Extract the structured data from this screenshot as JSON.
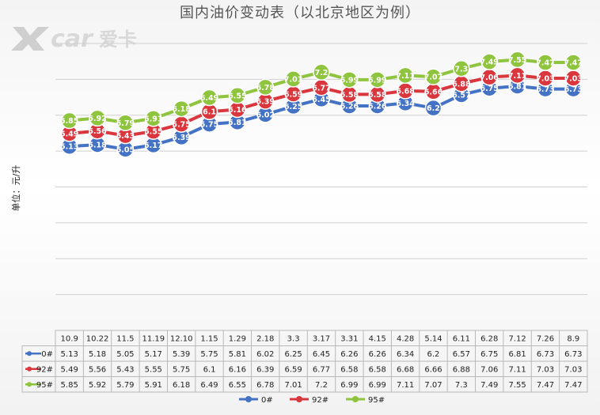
{
  "logo": {
    "mark": "X",
    "brand": "car",
    "cn": "爱卡"
  },
  "chart_data": {
    "type": "line",
    "title": "国内油价变动表（以北京地区为例）",
    "ylabel": "单位：元/升",
    "xlabel": "",
    "categories": [
      "10.9",
      "10.22",
      "11.5",
      "11.19",
      "12.10",
      "1.15",
      "1.29",
      "2.18",
      "3.3",
      "3.17",
      "3.31",
      "4.15",
      "4.28",
      "5.14",
      "6.11",
      "6.28",
      "7.12",
      "7.26",
      "8.9"
    ],
    "series": [
      {
        "name": "0#",
        "color": "#4472c4",
        "values": [
          5.13,
          5.18,
          5.05,
          5.17,
          5.39,
          5.75,
          5.81,
          6.02,
          6.25,
          6.45,
          6.26,
          6.26,
          6.34,
          6.2,
          6.57,
          6.75,
          6.81,
          6.73,
          6.73
        ]
      },
      {
        "name": "92#",
        "color": "#d9363e",
        "values": [
          5.49,
          5.56,
          5.43,
          5.55,
          5.75,
          6.1,
          6.16,
          6.39,
          6.59,
          6.77,
          6.58,
          6.58,
          6.68,
          6.66,
          6.88,
          7.06,
          7.11,
          7.03,
          7.03
        ]
      },
      {
        "name": "95#",
        "color": "#8fc43f",
        "values": [
          5.85,
          5.92,
          5.79,
          5.91,
          6.18,
          6.49,
          6.55,
          6.78,
          7.01,
          7.2,
          6.99,
          6.99,
          7.11,
          7.07,
          7.3,
          7.49,
          7.55,
          7.47,
          7.47
        ]
      }
    ],
    "ylim": [
      0,
      8
    ],
    "grid": true,
    "legend": "bottom",
    "data_table": true
  }
}
